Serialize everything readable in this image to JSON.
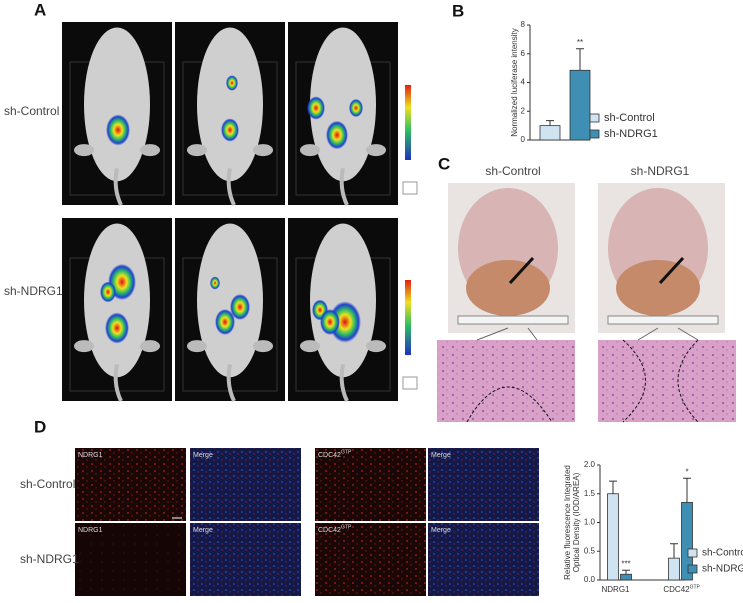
{
  "panel_labels": [
    "A",
    "B",
    "C",
    "D"
  ],
  "panel_a": {
    "rows": [
      "sh-Control",
      "sh-NDRG1"
    ]
  },
  "panel_c": {
    "columns": [
      "sh-Control",
      "sh-NDRG1"
    ]
  },
  "panel_d": {
    "rows": [
      "sh-Control",
      "sh-NDRG1"
    ],
    "image_labels": [
      {
        "text": "NDRG1"
      },
      {
        "text": "Merge"
      },
      {
        "text": "CDC42",
        "sup": "GTP"
      },
      {
        "text": "Merge"
      }
    ]
  },
  "chart_data": [
    {
      "type": "bar",
      "ylabel": [
        "Normalized luciferase intensity"
      ],
      "ylim": [
        0,
        8
      ],
      "yticks": [
        0,
        2,
        4,
        6,
        8
      ],
      "series": [
        {
          "name": "sh-Control",
          "color": "#cfe3f1",
          "values": [
            1.0
          ],
          "errors": [
            0.35
          ],
          "value_annotations": [
            null
          ]
        },
        {
          "name": "sh-NDRG1",
          "color": "#3f8fb5",
          "values": [
            4.85
          ],
          "errors": [
            1.5
          ],
          "value_annotations": [
            "**"
          ]
        }
      ],
      "legend": "right"
    },
    {
      "type": "bar",
      "ylabel": [
        "Relative fluorescence Integrated",
        "Optical Density (IOD/AREA)"
      ],
      "ylim": [
        0,
        2
      ],
      "yticks": [
        {
          "value": 0,
          "label": "0.0"
        },
        {
          "value": 0.5,
          "label": "0.5"
        },
        {
          "value": 1,
          "label": "1.0"
        },
        {
          "value": 1.5,
          "label": "1.5"
        },
        {
          "value": 2,
          "label": "2.0"
        }
      ],
      "categories": [
        "NDRG1",
        "CDC42"
      ],
      "category_superscripts": [
        null,
        "GTP"
      ],
      "series": [
        {
          "name": "sh-Control",
          "color": "#cfe3f1",
          "values": [
            1.5,
            0.38
          ],
          "errors": [
            0.22,
            0.25
          ],
          "value_annotations": [
            null,
            null
          ]
        },
        {
          "name": "sh-NDRG1",
          "color": "#3f8fb5",
          "values": [
            0.1,
            1.35
          ],
          "errors": [
            0.07,
            0.42
          ],
          "value_annotations": [
            "***",
            "*"
          ]
        }
      ],
      "legend": "right"
    }
  ]
}
